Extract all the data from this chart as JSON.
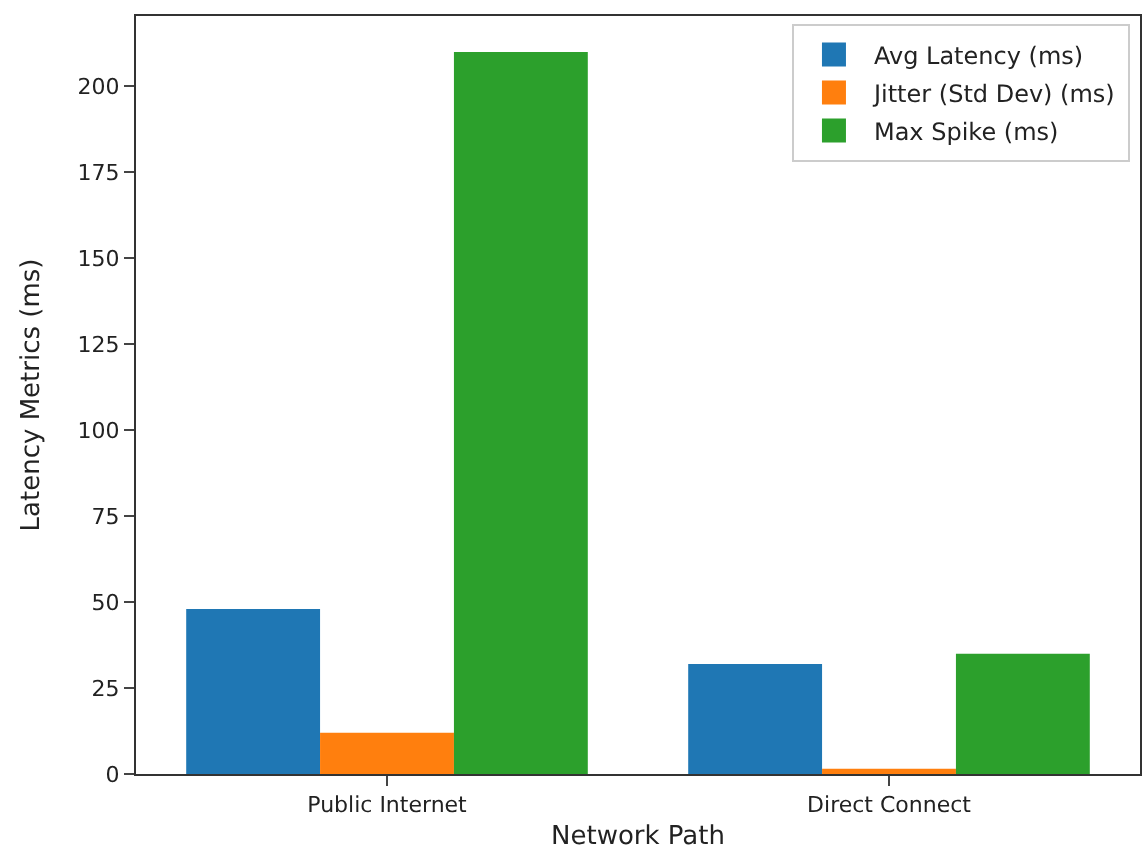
{
  "chart_data": {
    "type": "bar",
    "xlabel": "Network Path",
    "ylabel": "Latency Metrics (ms)",
    "categories": [
      "Public Internet",
      "Direct Connect"
    ],
    "series": [
      {
        "name": "Avg Latency (ms)",
        "color": "#1f77b4",
        "values": [
          48,
          32
        ]
      },
      {
        "name": "Jitter (Std Dev) (ms)",
        "color": "#ff7f0e",
        "values": [
          12,
          1.5
        ]
      },
      {
        "name": "Max Spike (ms)",
        "color": "#2ca02c",
        "values": [
          210,
          35
        ]
      }
    ],
    "ylim": [
      0,
      220.5
    ],
    "yticks": [
      0,
      25,
      50,
      75,
      100,
      125,
      150,
      175,
      200
    ],
    "legend": "top right"
  }
}
